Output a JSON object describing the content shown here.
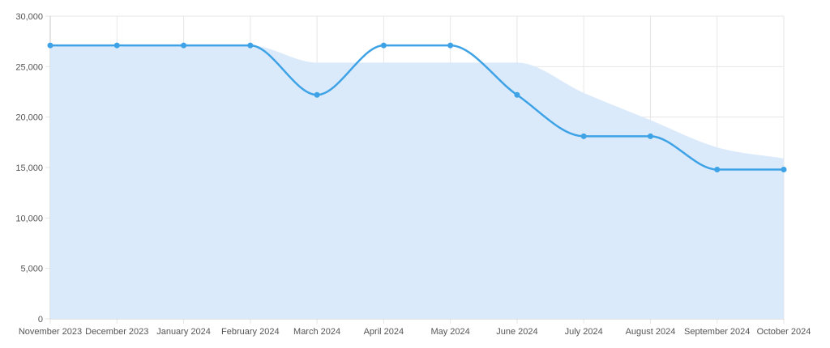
{
  "chart_data": {
    "type": "line",
    "categories": [
      "November 2023",
      "December 2023",
      "January 2024",
      "February 2024",
      "March 2024",
      "April 2024",
      "May 2024",
      "June 2024",
      "July 2024",
      "August 2024",
      "September 2024",
      "October 2024"
    ],
    "series": [
      {
        "type": "area",
        "values": [
          27100,
          27100,
          27100,
          27100,
          25400,
          25400,
          25400,
          25400,
          22400,
          19700,
          17000,
          15900
        ]
      },
      {
        "type": "line",
        "values": [
          27100,
          27100,
          27100,
          27100,
          22200,
          27100,
          27100,
          22200,
          18100,
          18100,
          14800,
          14800
        ]
      }
    ],
    "ylim": [
      0,
      30000
    ],
    "yticks": [
      "0",
      "5,000",
      "10,000",
      "15,000",
      "20,000",
      "25,000",
      "30,000"
    ],
    "grid": true,
    "legend": "none",
    "colors": {
      "line": "#3ea2e6",
      "area": "#dbeafb",
      "grid": "#e6e6e6",
      "axis": "#c8c8c8",
      "text": "#555555"
    }
  }
}
